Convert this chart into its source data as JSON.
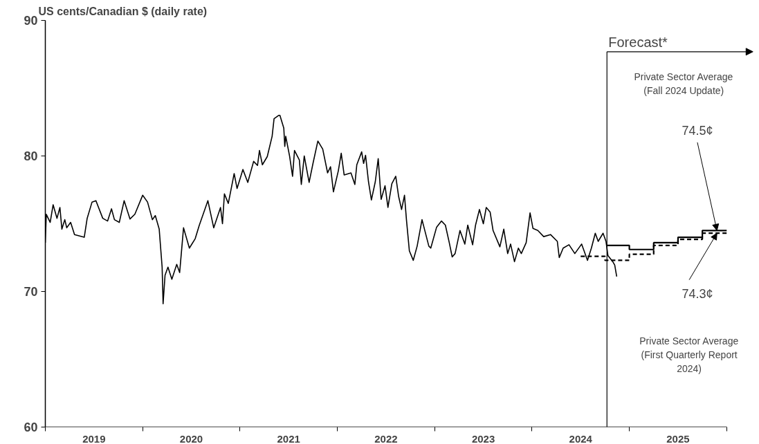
{
  "chart_data": {
    "type": "line",
    "ylabel": "US cents/Canadian $ (daily rate)",
    "xlim": [
      2019,
      2026
    ],
    "xticks": [
      {
        "value": 2019,
        "label": null
      },
      {
        "value": 2019.5,
        "label": "2019"
      },
      {
        "value": 2020,
        "label": null
      },
      {
        "value": 2020.5,
        "label": "2020"
      },
      {
        "value": 2021,
        "label": null
      },
      {
        "value": 2021.5,
        "label": "2021"
      },
      {
        "value": 2022,
        "label": null
      },
      {
        "value": 2022.5,
        "label": "2022"
      },
      {
        "value": 2023,
        "label": null
      },
      {
        "value": 2023.5,
        "label": "2023"
      },
      {
        "value": 2024,
        "label": null
      },
      {
        "value": 2024.5,
        "label": "2024"
      },
      {
        "value": 2025,
        "label": null
      },
      {
        "value": 2025.5,
        "label": "2025"
      },
      {
        "value": 2026,
        "label": null
      }
    ],
    "ylim": [
      60,
      90
    ],
    "yticks": [
      60,
      70,
      80,
      90
    ],
    "grid": false,
    "series": [
      {
        "color": "#000000",
        "x": [
          2019.0,
          2019.01,
          2019.05,
          2019.08,
          2019.12,
          2019.15,
          2019.17,
          2019.2,
          2019.22,
          2019.26,
          2019.3,
          2019.4,
          2019.43,
          2019.48,
          2019.52,
          2019.59,
          2019.64,
          2019.68,
          2019.71,
          2019.76,
          2019.81,
          2019.87,
          2019.92,
          2020.0,
          2020.05,
          2020.1,
          2020.13,
          2020.17,
          2020.2,
          2020.21,
          2020.23,
          2020.26,
          2020.3,
          2020.35,
          2020.38,
          2020.42,
          2020.48,
          2020.54,
          2020.58,
          2020.67,
          2020.73,
          2020.8,
          2020.82,
          2020.84,
          2020.88,
          2020.94,
          2020.97,
          2021.03,
          2021.08,
          2021.14,
          2021.18,
          2021.2,
          2021.23,
          2021.28,
          2021.33,
          2021.35,
          2021.4,
          2021.41,
          2021.45,
          2021.46,
          2021.47,
          2021.51,
          2021.54,
          2021.56,
          2021.61,
          2021.63,
          2021.66,
          2021.71,
          2021.75,
          2021.8,
          2021.85,
          2021.9,
          2021.93,
          2021.96,
          2022.01,
          2022.04,
          2022.07,
          2022.14,
          2022.18,
          2022.2,
          2022.25,
          2022.27,
          2022.29,
          2022.32,
          2022.35,
          2022.39,
          2022.42,
          2022.45,
          2022.49,
          2022.52,
          2022.56,
          2022.6,
          2022.63,
          2022.66,
          2022.69,
          2022.71,
          2022.74,
          2022.78,
          2022.82,
          2022.87,
          2022.94,
          2022.96,
          2023.02,
          2023.07,
          2023.11,
          2023.15,
          2023.18,
          2023.21,
          2023.26,
          2023.31,
          2023.34,
          2023.39,
          2023.42,
          2023.46,
          2023.5,
          2023.53,
          2023.57,
          2023.6,
          2023.67,
          2023.71,
          2023.75,
          2023.78,
          2023.82,
          2023.86,
          2023.89,
          2023.94,
          2023.98,
          2024.01,
          2024.06,
          2024.12,
          2024.19,
          2024.26,
          2024.28,
          2024.32,
          2024.38,
          2024.44,
          2024.51,
          2024.57,
          2024.61,
          2024.65,
          2024.68,
          2024.73,
          2024.76,
          2024.78,
          2024.83,
          2024.85,
          2024.87
        ],
        "values": [
          73.6,
          75.7,
          75.1,
          76.4,
          75.4,
          76.2,
          74.6,
          75.3,
          74.7,
          75.1,
          74.2,
          74.0,
          75.4,
          76.6,
          76.7,
          75.4,
          75.2,
          76.1,
          75.3,
          75.1,
          76.7,
          75.35,
          75.7,
          77.1,
          76.6,
          75.3,
          75.6,
          74.6,
          71.8,
          69.1,
          71.2,
          71.8,
          70.9,
          72.0,
          71.4,
          74.7,
          73.2,
          73.9,
          74.85,
          76.7,
          74.7,
          76.2,
          75.0,
          77.2,
          76.5,
          78.7,
          77.6,
          79.0,
          78.05,
          79.6,
          79.3,
          80.4,
          79.35,
          79.95,
          81.45,
          82.75,
          83.0,
          83.0,
          82.05,
          80.7,
          81.45,
          79.97,
          78.5,
          80.4,
          79.7,
          77.9,
          80.0,
          78.05,
          79.45,
          81.1,
          80.5,
          78.75,
          79.2,
          77.35,
          78.9,
          80.2,
          78.6,
          78.75,
          77.9,
          79.35,
          80.3,
          79.45,
          80.05,
          78.1,
          76.75,
          78.1,
          79.8,
          76.8,
          77.8,
          76.2,
          77.95,
          78.5,
          77.0,
          76.05,
          77.1,
          75.3,
          73.0,
          72.3,
          73.35,
          75.3,
          73.35,
          73.2,
          74.75,
          75.2,
          74.9,
          73.6,
          72.55,
          72.8,
          74.5,
          73.5,
          74.9,
          73.45,
          74.9,
          76.05,
          75.0,
          76.2,
          75.85,
          74.5,
          73.3,
          74.6,
          72.8,
          73.5,
          72.2,
          73.2,
          72.8,
          73.6,
          75.8,
          74.65,
          74.5,
          74.05,
          74.2,
          73.7,
          72.5,
          73.2,
          73.45,
          72.8,
          73.5,
          72.3,
          73.2,
          74.3,
          73.7,
          74.3,
          73.7,
          72.65,
          72.2,
          71.95,
          71.1
        ]
      },
      {
        "type": "step",
        "color": "#000000",
        "x": [
          2024.77,
          2025,
          2025.25,
          2025.5,
          2025.75,
          2026
        ],
        "values": [
          73.4,
          73.1,
          73.6,
          74.0,
          74.5,
          74.5
        ]
      },
      {
        "type": "step",
        "color": "#000000",
        "line_style": "dashed",
        "x": [
          2024.5,
          2024.75,
          2025,
          2025.25,
          2025.5,
          2025.75,
          2026
        ],
        "values": [
          72.6,
          72.3,
          72.75,
          73.4,
          73.85,
          74.3,
          74.3
        ]
      }
    ],
    "ref_lines": [
      {
        "axis": "x",
        "value": 2024.77,
        "label": "Forecast*"
      }
    ],
    "annotations": [
      {
        "text": "74.5¢",
        "x": 2025.9,
        "y": 74.5
      },
      {
        "text": "74.3¢",
        "x": 2025.9,
        "y": 74.3
      },
      "Private Sector Average\n(Fall 2024 Update)",
      "Private Sector Average\n(First Quarterly Report\n2024)"
    ]
  }
}
